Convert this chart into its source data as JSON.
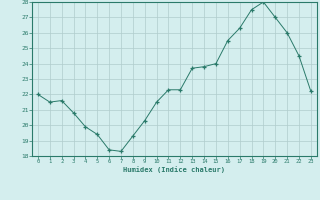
{
  "x": [
    0,
    1,
    2,
    3,
    4,
    5,
    6,
    7,
    8,
    9,
    10,
    11,
    12,
    13,
    14,
    15,
    16,
    17,
    18,
    19,
    20,
    21,
    22,
    23
  ],
  "y": [
    22.0,
    21.5,
    21.6,
    20.8,
    19.9,
    19.4,
    18.4,
    18.3,
    19.3,
    20.3,
    21.5,
    22.3,
    22.3,
    23.7,
    23.8,
    24.0,
    25.5,
    26.3,
    27.5,
    28.0,
    27.0,
    26.0,
    24.5,
    22.2
  ],
  "line_color": "#2a7a6a",
  "marker": "+",
  "marker_size": 3,
  "bg_color": "#d4eeee",
  "grid_color": "#b0cccc",
  "xlabel": "Humidex (Indice chaleur)",
  "xlim": [
    -0.5,
    23.5
  ],
  "ylim": [
    18,
    28
  ],
  "yticks": [
    18,
    19,
    20,
    21,
    22,
    23,
    24,
    25,
    26,
    27,
    28
  ],
  "xticks": [
    0,
    1,
    2,
    3,
    4,
    5,
    6,
    7,
    8,
    9,
    10,
    11,
    12,
    13,
    14,
    15,
    16,
    17,
    18,
    19,
    20,
    21,
    22,
    23
  ],
  "tick_color": "#2a7a6a",
  "label_color": "#2a7a6a",
  "axis_color": "#2a7a6a"
}
